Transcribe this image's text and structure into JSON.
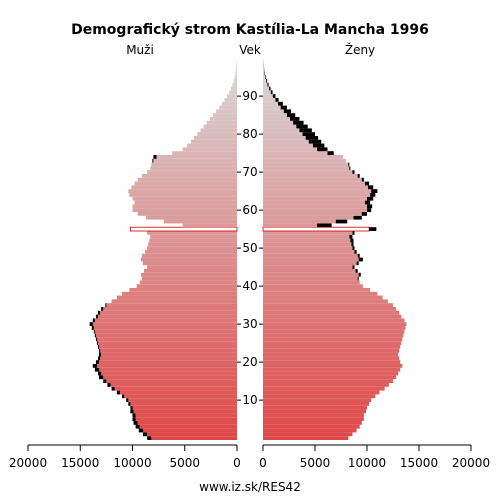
{
  "chart_data": {
    "type": "bar",
    "orientation": "horizontal-pyramid",
    "title": "Demografický strom Kastília-La Mancha 1996",
    "left_label": "Muži",
    "center_label": "Vek",
    "right_label": "Ženy",
    "footer": "www.iz.sk/RES42",
    "x_ticks": [
      "20000",
      "15000",
      "10000",
      "5000",
      "0",
      "0",
      "5000",
      "10000",
      "15000",
      "20000"
    ],
    "y_ticks": [
      "10",
      "20",
      "30",
      "40",
      "50",
      "60",
      "70",
      "80",
      "90"
    ],
    "y_tick_values": [
      10,
      20,
      30,
      40,
      50,
      60,
      70,
      80,
      90
    ],
    "xlim": [
      0,
      20000
    ],
    "ages": [
      0,
      1,
      2,
      3,
      4,
      5,
      6,
      7,
      8,
      9,
      10,
      11,
      12,
      13,
      14,
      15,
      16,
      17,
      18,
      19,
      20,
      21,
      22,
      23,
      24,
      25,
      26,
      27,
      28,
      29,
      30,
      31,
      32,
      33,
      34,
      35,
      36,
      37,
      38,
      39,
      40,
      41,
      42,
      43,
      44,
      45,
      46,
      47,
      48,
      49,
      50,
      51,
      52,
      53,
      54,
      55,
      56,
      57,
      58,
      59,
      60,
      61,
      62,
      63,
      64,
      65,
      66,
      67,
      68,
      69,
      70,
      71,
      72,
      73,
      74,
      75,
      76,
      77,
      78,
      79,
      80,
      81,
      82,
      83,
      84,
      85,
      86,
      87,
      88,
      89,
      90,
      91,
      92,
      93,
      94,
      95,
      96,
      97,
      98,
      99
    ],
    "colors": {
      "male_bottom": "#e04848",
      "male_top": "#d8d8d8",
      "female_bottom": "#e04848",
      "female_top": "#d8d8d8",
      "surplus": "#000000",
      "highlight_fill": "#ffffff",
      "highlight_outline": "#cc0000"
    },
    "highlight_age": 55,
    "series": [
      {
        "name": "Muži",
        "values": [
          8600,
          9000,
          9400,
          9700,
          9900,
          10000,
          10000,
          10200,
          10200,
          10400,
          10600,
          11000,
          11500,
          12000,
          12400,
          12800,
          13200,
          13300,
          13600,
          13800,
          13500,
          13300,
          13200,
          13200,
          13300,
          13400,
          13500,
          13600,
          13700,
          13900,
          14100,
          13800,
          13500,
          13300,
          13000,
          12600,
          12000,
          11500,
          11000,
          10300,
          9600,
          9300,
          9100,
          9200,
          8900,
          8600,
          9000,
          9200,
          9100,
          8800,
          8600,
          8500,
          8400,
          8300,
          8600,
          10200,
          5200,
          7000,
          8700,
          9500,
          10000,
          10000,
          9800,
          10000,
          10300,
          10400,
          10100,
          9800,
          9500,
          9100,
          8600,
          8300,
          8200,
          8100,
          8000,
          6200,
          5200,
          4800,
          4400,
          4100,
          3800,
          3500,
          3200,
          2900,
          2600,
          2300,
          2000,
          1700,
          1450,
          1200,
          950,
          750,
          580,
          430,
          310,
          220,
          150,
          100,
          60,
          40
        ]
      },
      {
        "name": "Ženy",
        "values": [
          8200,
          8600,
          9000,
          9300,
          9500,
          9700,
          9700,
          9900,
          10000,
          10200,
          10400,
          10800,
          11200,
          11700,
          12100,
          12500,
          12800,
          13000,
          13200,
          13400,
          13200,
          13100,
          13000,
          13100,
          13200,
          13300,
          13400,
          13500,
          13600,
          13700,
          13800,
          13600,
          13300,
          13100,
          12800,
          12500,
          12000,
          11500,
          11000,
          10300,
          9600,
          9300,
          9200,
          9400,
          9100,
          8800,
          9200,
          9600,
          9300,
          9000,
          8800,
          8700,
          8700,
          8600,
          8800,
          10900,
          6600,
          8100,
          9500,
          10000,
          10400,
          10500,
          10300,
          10600,
          10800,
          11000,
          10600,
          10200,
          9700,
          9300,
          8800,
          8400,
          8300,
          8000,
          7700,
          6800,
          6200,
          5900,
          5600,
          5300,
          5000,
          4700,
          4300,
          3900,
          3500,
          3100,
          2700,
          2300,
          1900,
          1500,
          1200,
          920,
          720,
          540,
          400,
          280,
          190,
          120,
          75,
          45
        ]
      }
    ]
  }
}
